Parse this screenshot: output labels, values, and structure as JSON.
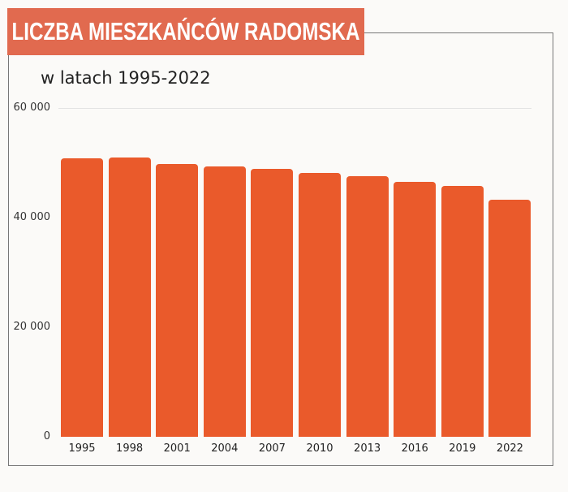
{
  "header": {
    "title": "LICZBA MIESZKAŃCÓW RADOMSKA",
    "subtitle": "w latach 1995-2022"
  },
  "colors": {
    "title_bg": "#e16a4f",
    "bar": "#ea5a2b",
    "frame": "#777777"
  },
  "chart_data": {
    "type": "bar",
    "title": "LICZBA MIESZKAŃCÓW RADOMSKA",
    "subtitle": "w latach 1995-2022",
    "xlabel": "",
    "ylabel": "",
    "categories": [
      "1995",
      "1998",
      "2001",
      "2004",
      "2007",
      "2010",
      "2013",
      "2016",
      "2019",
      "2022"
    ],
    "values": [
      50800,
      50900,
      49800,
      49300,
      48900,
      48100,
      47600,
      46500,
      45800,
      43300
    ],
    "ylim": [
      0,
      60000
    ],
    "yticks": [
      0,
      20000,
      40000,
      60000
    ],
    "ytick_labels": [
      "0",
      "20 000",
      "40 000",
      "60 000"
    ],
    "grid": "top gridline at 60 000 only",
    "legend": null
  }
}
